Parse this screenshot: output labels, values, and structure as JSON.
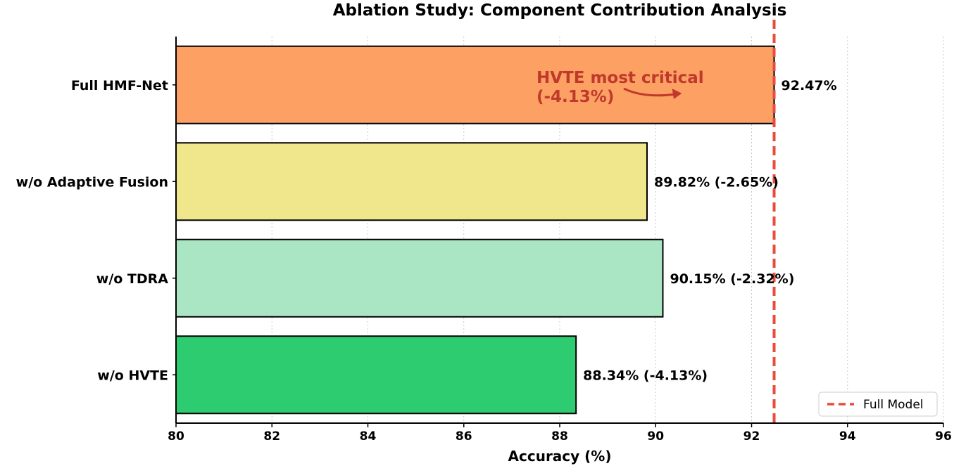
{
  "chart_data": {
    "type": "bar",
    "orientation": "horizontal",
    "title": "Ablation Study: Component Contribution Analysis",
    "xlabel": "Accuracy (%)",
    "ylabel": "",
    "xlim": [
      80,
      96
    ],
    "xticks": [
      80,
      82,
      84,
      86,
      88,
      90,
      92,
      94,
      96
    ],
    "grid": "vertical dotted",
    "categories": [
      "Full HMF-Net",
      "w/o Adaptive Fusion",
      "w/o TDRA",
      "w/o HVTE"
    ],
    "values": [
      92.47,
      89.82,
      90.15,
      88.34
    ],
    "data_labels": [
      "92.47%",
      "89.82% (-2.65%)",
      "90.15% (-2.32%)",
      "88.34% (-4.13%)"
    ],
    "colors": [
      "#fca064",
      "#f0e68c",
      "#abe6c4",
      "#2ecc71"
    ],
    "reference_line": {
      "value": 92.47,
      "label": "Full Model",
      "color": "#e74c3c",
      "style": "dashed"
    },
    "annotation": {
      "text_lines": [
        "HVTE most critical",
        "(-4.13%)"
      ],
      "color": "#c0392b",
      "target_value": 90.5
    },
    "legend": {
      "placement": "bottom-right",
      "entries": [
        "Full Model"
      ]
    }
  }
}
